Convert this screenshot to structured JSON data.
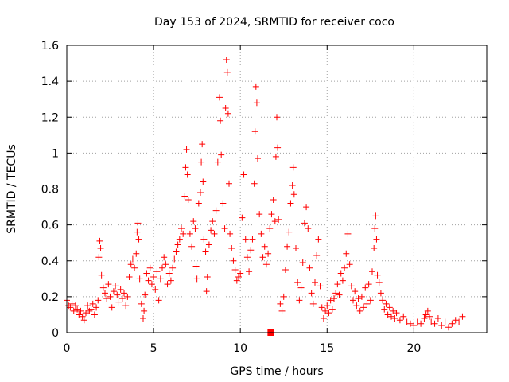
{
  "chart_data": {
    "type": "scatter",
    "title": "Day 153 of 2024, SRMTID for receiver coco",
    "xlabel": "GPS time / hours",
    "ylabel": "SRMTID / TECUs",
    "xlim": [
      0,
      24.2
    ],
    "ylim": [
      0,
      1.6
    ],
    "xticks": [
      0,
      5,
      10,
      15,
      20
    ],
    "xtick_labels": [
      "0",
      "5",
      "10",
      "15",
      "20"
    ],
    "yticks": [
      0,
      0.2,
      0.4,
      0.6,
      0.8,
      1.0,
      1.2,
      1.4,
      1.6
    ],
    "ytick_labels": [
      "0",
      "0.2",
      "0.4",
      "0.6",
      "0.8",
      "1",
      "1.2",
      "1.4",
      "1.6"
    ],
    "grid": true,
    "marker": "+",
    "color": "#ff0000",
    "legend": "none",
    "series": [
      {
        "name": "SRMTID",
        "points": [
          [
            0.0,
            0.18
          ],
          [
            0.1,
            0.15
          ],
          [
            0.2,
            0.14
          ],
          [
            0.3,
            0.16
          ],
          [
            0.4,
            0.12
          ],
          [
            0.5,
            0.15
          ],
          [
            0.6,
            0.13
          ],
          [
            0.7,
            0.1
          ],
          [
            0.8,
            0.12
          ],
          [
            0.9,
            0.09
          ],
          [
            1.0,
            0.07
          ],
          [
            1.1,
            0.11
          ],
          [
            1.2,
            0.15
          ],
          [
            1.3,
            0.12
          ],
          [
            1.4,
            0.13
          ],
          [
            1.5,
            0.16
          ],
          [
            1.6,
            0.1
          ],
          [
            1.7,
            0.14
          ],
          [
            1.8,
            0.18
          ],
          [
            1.85,
            0.42
          ],
          [
            1.9,
            0.51
          ],
          [
            1.95,
            0.47
          ],
          [
            2.0,
            0.32
          ],
          [
            2.1,
            0.25
          ],
          [
            2.2,
            0.22
          ],
          [
            2.3,
            0.19
          ],
          [
            2.4,
            0.27
          ],
          [
            2.5,
            0.2
          ],
          [
            2.6,
            0.14
          ],
          [
            2.7,
            0.23
          ],
          [
            2.8,
            0.26
          ],
          [
            2.9,
            0.21
          ],
          [
            3.0,
            0.17
          ],
          [
            3.1,
            0.24
          ],
          [
            3.2,
            0.19
          ],
          [
            3.3,
            0.22
          ],
          [
            3.4,
            0.15
          ],
          [
            3.5,
            0.2
          ],
          [
            3.6,
            0.31
          ],
          [
            3.7,
            0.38
          ],
          [
            3.8,
            0.41
          ],
          [
            3.9,
            0.36
          ],
          [
            4.0,
            0.44
          ],
          [
            4.05,
            0.56
          ],
          [
            4.1,
            0.61
          ],
          [
            4.15,
            0.52
          ],
          [
            4.2,
            0.3
          ],
          [
            4.3,
            0.16
          ],
          [
            4.4,
            0.08
          ],
          [
            4.45,
            0.12
          ],
          [
            4.5,
            0.21
          ],
          [
            4.6,
            0.33
          ],
          [
            4.7,
            0.29
          ],
          [
            4.8,
            0.36
          ],
          [
            4.9,
            0.27
          ],
          [
            5.0,
            0.31
          ],
          [
            5.1,
            0.24
          ],
          [
            5.2,
            0.34
          ],
          [
            5.3,
            0.18
          ],
          [
            5.4,
            0.3
          ],
          [
            5.5,
            0.36
          ],
          [
            5.6,
            0.42
          ],
          [
            5.7,
            0.38
          ],
          [
            5.8,
            0.27
          ],
          [
            5.9,
            0.33
          ],
          [
            6.0,
            0.29
          ],
          [
            6.1,
            0.36
          ],
          [
            6.2,
            0.41
          ],
          [
            6.3,
            0.45
          ],
          [
            6.4,
            0.49
          ],
          [
            6.5,
            0.52
          ],
          [
            6.6,
            0.58
          ],
          [
            6.7,
            0.55
          ],
          [
            6.8,
            0.76
          ],
          [
            6.85,
            0.92
          ],
          [
            6.9,
            1.02
          ],
          [
            6.95,
            0.88
          ],
          [
            7.0,
            0.74
          ],
          [
            7.1,
            0.55
          ],
          [
            7.2,
            0.48
          ],
          [
            7.3,
            0.62
          ],
          [
            7.4,
            0.58
          ],
          [
            7.45,
            0.37
          ],
          [
            7.5,
            0.3
          ],
          [
            7.6,
            0.72
          ],
          [
            7.7,
            0.78
          ],
          [
            7.75,
            0.95
          ],
          [
            7.8,
            1.05
          ],
          [
            7.85,
            0.84
          ],
          [
            7.9,
            0.52
          ],
          [
            8.0,
            0.45
          ],
          [
            8.05,
            0.23
          ],
          [
            8.1,
            0.31
          ],
          [
            8.2,
            0.49
          ],
          [
            8.3,
            0.57
          ],
          [
            8.4,
            0.62
          ],
          [
            8.5,
            0.55
          ],
          [
            8.6,
            0.68
          ],
          [
            8.7,
            0.95
          ],
          [
            8.8,
            1.31
          ],
          [
            8.85,
            1.18
          ],
          [
            8.9,
            0.99
          ],
          [
            9.0,
            0.72
          ],
          [
            9.1,
            0.58
          ],
          [
            9.15,
            1.25
          ],
          [
            9.2,
            1.52
          ],
          [
            9.25,
            1.45
          ],
          [
            9.3,
            1.22
          ],
          [
            9.35,
            0.83
          ],
          [
            9.4,
            0.55
          ],
          [
            9.5,
            0.47
          ],
          [
            9.6,
            0.4
          ],
          [
            9.7,
            0.35
          ],
          [
            9.8,
            0.29
          ],
          [
            9.9,
            0.31
          ],
          [
            10.0,
            0.33
          ],
          [
            10.1,
            0.64
          ],
          [
            10.2,
            0.88
          ],
          [
            10.3,
            0.52
          ],
          [
            10.4,
            0.42
          ],
          [
            10.5,
            0.34
          ],
          [
            10.6,
            0.46
          ],
          [
            10.7,
            0.52
          ],
          [
            10.8,
            0.83
          ],
          [
            10.85,
            1.12
          ],
          [
            10.9,
            1.37
          ],
          [
            10.95,
            1.28
          ],
          [
            11.0,
            0.97
          ],
          [
            11.1,
            0.66
          ],
          [
            11.2,
            0.55
          ],
          [
            11.3,
            0.42
          ],
          [
            11.4,
            0.48
          ],
          [
            11.5,
            0.38
          ],
          [
            11.6,
            0.44
          ],
          [
            11.7,
            0.58
          ],
          [
            11.8,
            0.66
          ],
          [
            11.9,
            0.74
          ],
          [
            12.0,
            0.62
          ],
          [
            12.05,
            0.98
          ],
          [
            12.1,
            1.2
          ],
          [
            12.15,
            1.03
          ],
          [
            12.2,
            0.63
          ],
          [
            12.3,
            0.16
          ],
          [
            12.4,
            0.12
          ],
          [
            12.5,
            0.2
          ],
          [
            12.6,
            0.35
          ],
          [
            12.7,
            0.48
          ],
          [
            12.8,
            0.56
          ],
          [
            12.9,
            0.72
          ],
          [
            13.0,
            0.82
          ],
          [
            13.05,
            0.92
          ],
          [
            13.1,
            0.77
          ],
          [
            13.2,
            0.47
          ],
          [
            13.3,
            0.28
          ],
          [
            13.4,
            0.18
          ],
          [
            13.5,
            0.25
          ],
          [
            13.6,
            0.39
          ],
          [
            13.7,
            0.61
          ],
          [
            13.8,
            0.7
          ],
          [
            13.9,
            0.58
          ],
          [
            14.0,
            0.36
          ],
          [
            14.1,
            0.22
          ],
          [
            14.2,
            0.16
          ],
          [
            14.3,
            0.28
          ],
          [
            14.4,
            0.43
          ],
          [
            14.5,
            0.52
          ],
          [
            14.6,
            0.26
          ],
          [
            14.7,
            0.14
          ],
          [
            14.8,
            0.08
          ],
          [
            14.9,
            0.12
          ],
          [
            15.0,
            0.15
          ],
          [
            15.1,
            0.11
          ],
          [
            15.2,
            0.18
          ],
          [
            15.3,
            0.13
          ],
          [
            15.4,
            0.19
          ],
          [
            15.5,
            0.22
          ],
          [
            15.6,
            0.27
          ],
          [
            15.7,
            0.21
          ],
          [
            15.8,
            0.33
          ],
          [
            15.9,
            0.29
          ],
          [
            16.0,
            0.36
          ],
          [
            16.1,
            0.44
          ],
          [
            16.2,
            0.55
          ],
          [
            16.3,
            0.38
          ],
          [
            16.4,
            0.26
          ],
          [
            16.5,
            0.18
          ],
          [
            16.6,
            0.23
          ],
          [
            16.7,
            0.15
          ],
          [
            16.8,
            0.19
          ],
          [
            16.9,
            0.12
          ],
          [
            17.0,
            0.2
          ],
          [
            17.1,
            0.14
          ],
          [
            17.2,
            0.25
          ],
          [
            17.3,
            0.16
          ],
          [
            17.4,
            0.27
          ],
          [
            17.5,
            0.18
          ],
          [
            17.6,
            0.34
          ],
          [
            17.7,
            0.47
          ],
          [
            17.75,
            0.58
          ],
          [
            17.8,
            0.65
          ],
          [
            17.85,
            0.52
          ],
          [
            17.9,
            0.32
          ],
          [
            18.0,
            0.28
          ],
          [
            18.1,
            0.22
          ],
          [
            18.2,
            0.18
          ],
          [
            18.3,
            0.13
          ],
          [
            18.4,
            0.16
          ],
          [
            18.5,
            0.1
          ],
          [
            18.6,
            0.14
          ],
          [
            18.7,
            0.09
          ],
          [
            18.8,
            0.12
          ],
          [
            18.9,
            0.08
          ],
          [
            19.0,
            0.11
          ],
          [
            19.2,
            0.07
          ],
          [
            19.4,
            0.09
          ],
          [
            19.6,
            0.06
          ],
          [
            19.8,
            0.05
          ],
          [
            20.0,
            0.04
          ],
          [
            20.2,
            0.06
          ],
          [
            20.4,
            0.05
          ],
          [
            20.6,
            0.08
          ],
          [
            20.7,
            0.1
          ],
          [
            20.8,
            0.12
          ],
          [
            20.9,
            0.09
          ],
          [
            21.0,
            0.06
          ],
          [
            21.2,
            0.05
          ],
          [
            21.4,
            0.08
          ],
          [
            21.6,
            0.04
          ],
          [
            21.8,
            0.06
          ],
          [
            22.0,
            0.03
          ],
          [
            22.2,
            0.05
          ],
          [
            22.4,
            0.07
          ],
          [
            22.6,
            0.06
          ],
          [
            22.8,
            0.09
          ]
        ]
      }
    ],
    "annotations": [
      {
        "type": "filled-square",
        "x": 11.75,
        "y": 0.0,
        "color": "#ff0000"
      }
    ]
  }
}
